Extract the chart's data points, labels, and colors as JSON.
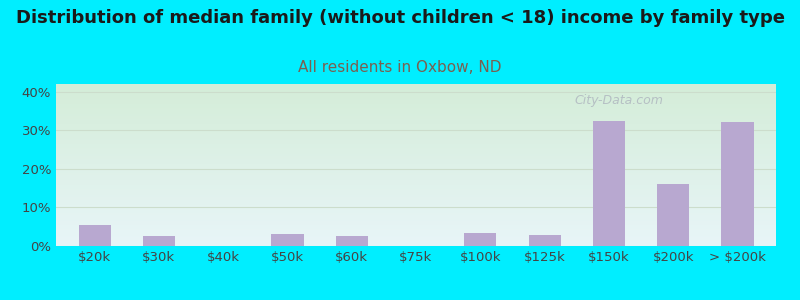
{
  "title": "Distribution of median family (without children < 18) income by family type",
  "subtitle": "All residents in Oxbow, ND",
  "categories": [
    "$20k",
    "$30k",
    "$40k",
    "$50k",
    "$60k",
    "$75k",
    "$100k",
    "$125k",
    "$150k",
    "$200k",
    "> $200k"
  ],
  "values": [
    5.5,
    2.5,
    0.0,
    3.0,
    2.5,
    0.0,
    3.5,
    2.8,
    32.5,
    16.0,
    32.2
  ],
  "bar_color": "#b8a8d0",
  "background_color": "#00eeff",
  "grad_top": "#d4edd8",
  "grad_bottom": "#e8f5f8",
  "title_color": "#1a1a1a",
  "subtitle_color": "#7a6050",
  "tick_label_color": "#444444",
  "gridline_color": "#ccddcc",
  "ylim": [
    0,
    42
  ],
  "yticks": [
    0,
    10,
    20,
    30,
    40
  ],
  "title_fontsize": 13,
  "subtitle_fontsize": 11,
  "tick_fontsize": 9.5,
  "watermark": "City-Data.com"
}
